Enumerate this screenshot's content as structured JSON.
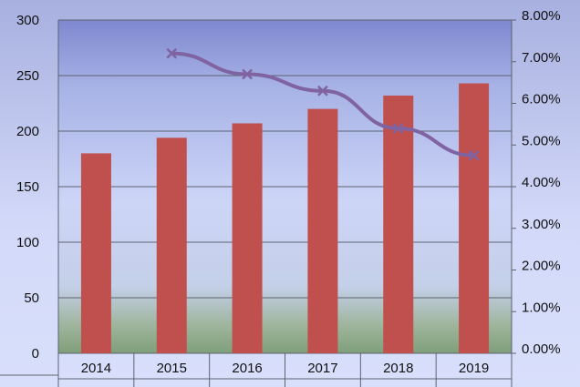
{
  "chart_data": {
    "type": "bar",
    "categories": [
      "2014",
      "2015",
      "2016",
      "2017",
      "2018",
      "2019"
    ],
    "series": [
      {
        "type": "bar",
        "axis": "left",
        "values": [
          180,
          194,
          207,
          220,
          232,
          243
        ],
        "color": "#c0504d"
      },
      {
        "type": "line",
        "axis": "right",
        "values": [
          null,
          7.2,
          6.7,
          6.3,
          5.4,
          4.75
        ],
        "color": "#8064a2",
        "marker": "x"
      }
    ],
    "y_left": {
      "lim": [
        0,
        300
      ],
      "ticks": [
        "0",
        "50",
        "100",
        "150",
        "200",
        "250",
        "300"
      ]
    },
    "y_right": {
      "lim": [
        0,
        8
      ],
      "ticks": [
        "0.00%",
        "1.00%",
        "2.00%",
        "3.00%",
        "4.00%",
        "5.00%",
        "6.00%",
        "7.00%",
        "8.00%"
      ]
    },
    "grid": true,
    "colors": {
      "plot_top": "#7f8bd0",
      "plot_mid": "#c8d0f4",
      "plot_bottom": "#7fa07a",
      "grid": "#5e6370"
    }
  }
}
